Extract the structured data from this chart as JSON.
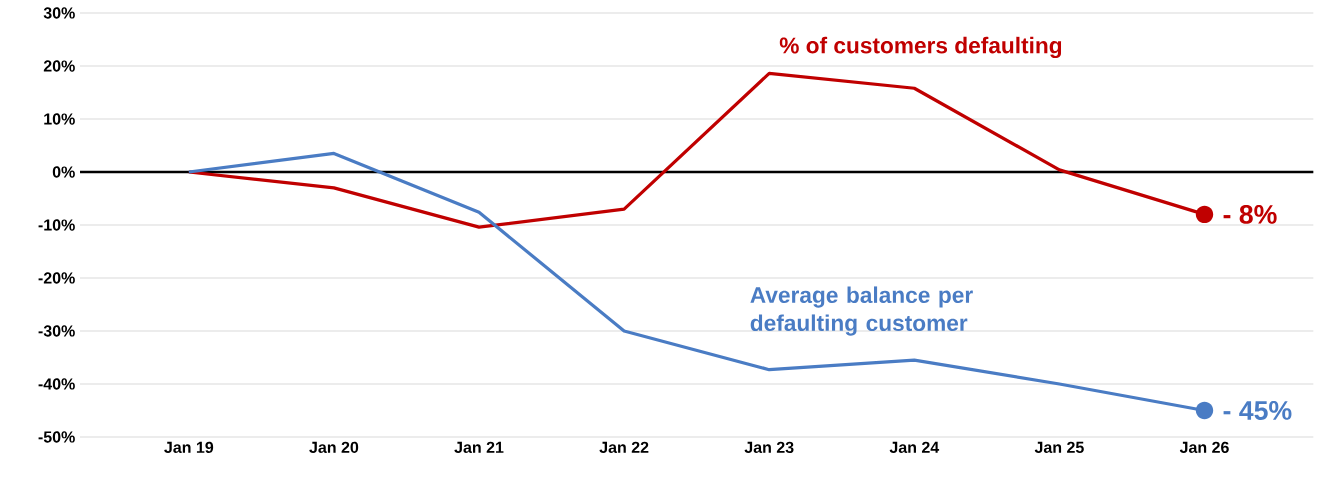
{
  "chart_data": {
    "type": "line",
    "categories": [
      "Jan 19",
      "Jan 20",
      "Jan 21",
      "Jan 22",
      "Jan 23",
      "Jan 24",
      "Jan 25",
      "Jan 26"
    ],
    "series": [
      {
        "name": "% of customers defaulting",
        "color": "#c00000",
        "values": [
          0,
          -3,
          -10.4,
          -7,
          18.6,
          15.8,
          0.4,
          -8
        ],
        "value_labels": [
          null,
          null,
          null,
          null,
          null,
          null,
          null,
          "- 8%"
        ]
      },
      {
        "name": "Average balance per defaulting customer",
        "color": "#4a7cc4",
        "values": [
          0,
          3.5,
          -7.6,
          -30,
          -37.3,
          -35.5,
          -40,
          -45
        ],
        "value_labels": [
          null,
          null,
          null,
          null,
          null,
          null,
          null,
          "- 45%"
        ]
      }
    ],
    "ylim": [
      -50,
      30
    ],
    "yticks": [
      {
        "value": -50,
        "label": "-50%"
      },
      {
        "value": -40,
        "label": "-40%"
      },
      {
        "value": -30,
        "label": "-30%"
      },
      {
        "value": -20,
        "label": "-20%"
      },
      {
        "value": -10,
        "label": "-10%"
      },
      {
        "value": 0,
        "label": "0%"
      },
      {
        "value": 10,
        "label": "10%"
      },
      {
        "value": 20,
        "label": "20%"
      },
      {
        "value": 30,
        "label": "30%"
      }
    ],
    "grid": "y",
    "line_style": "solid",
    "ref_lines": [
      {
        "axis": "y",
        "value": 0,
        "color": "#000000"
      }
    ]
  }
}
